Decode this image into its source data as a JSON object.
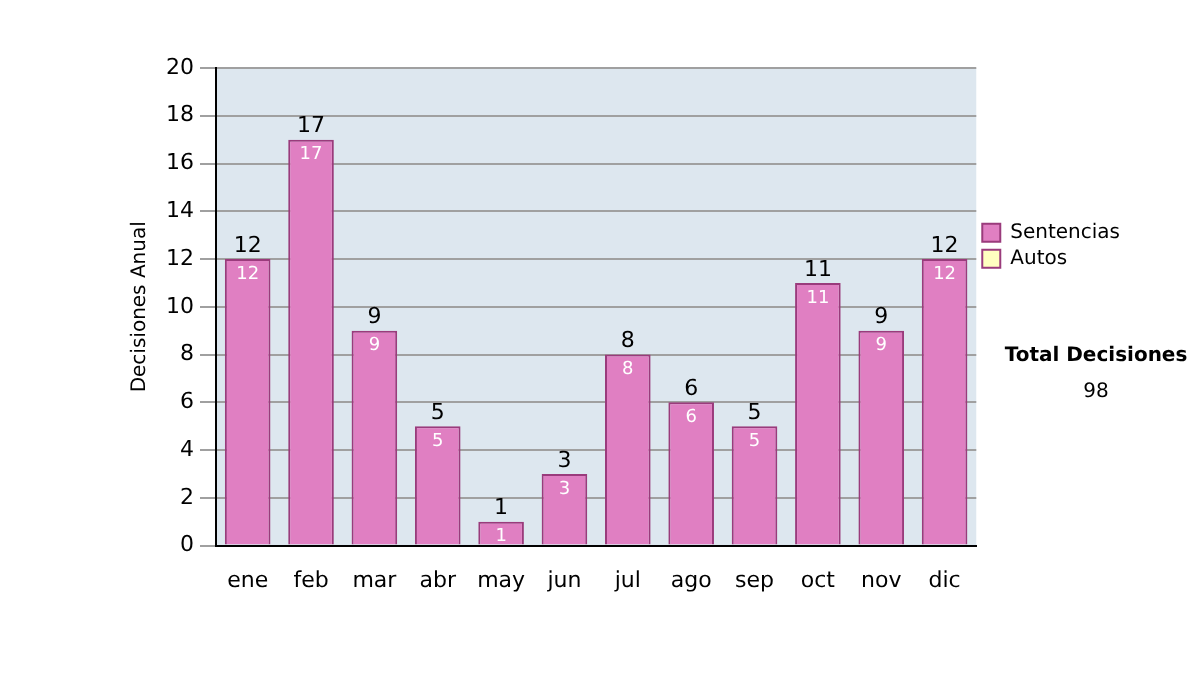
{
  "chart_data": {
    "type": "bar",
    "ylabel": "Decisiones Anual",
    "categories": [
      "ene",
      "feb",
      "mar",
      "abr",
      "may",
      "jun",
      "jul",
      "ago",
      "sep",
      "oct",
      "nov",
      "dic"
    ],
    "series": [
      {
        "name": "Sentencias",
        "color": "#e07fc2",
        "values": [
          12,
          17,
          9,
          5,
          1,
          3,
          8,
          6,
          5,
          11,
          9,
          12
        ],
        "value_labels": [
          "12",
          "17",
          "9",
          "5",
          "1",
          "3",
          "8",
          "6",
          "5",
          "11",
          "9",
          "12"
        ]
      },
      {
        "name": "Autos",
        "color": "#ffffc0",
        "values": [
          0,
          0,
          0,
          0,
          0,
          0,
          0,
          0,
          0,
          0,
          0,
          0
        ]
      }
    ],
    "stacked": true,
    "ylim": [
      0,
      20
    ],
    "yticks": [
      0,
      2,
      4,
      6,
      8,
      10,
      12,
      14,
      16,
      18,
      20
    ],
    "grid": "y",
    "legend": "right",
    "totals": [
      "12",
      "17",
      "9",
      "5",
      "1",
      "3",
      "8",
      "6",
      "5",
      "11",
      "9",
      "12"
    ],
    "annotations": [
      "Total Decisiones",
      "98"
    ]
  }
}
